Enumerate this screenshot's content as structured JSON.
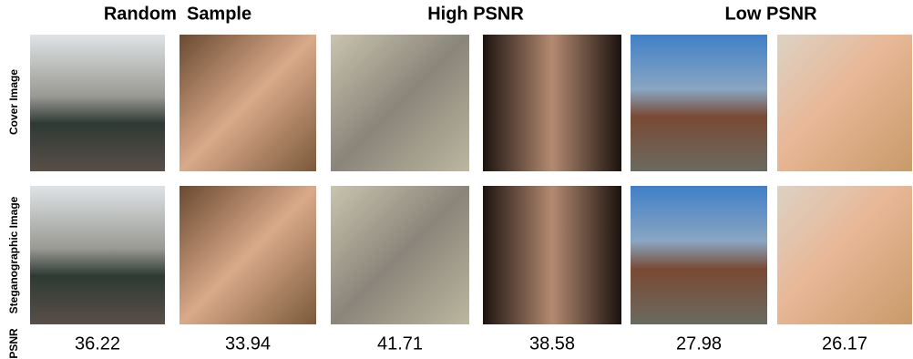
{
  "headers": [
    "Random  Sample",
    "High PSNR",
    "Low PSNR"
  ],
  "row_labels": [
    "Cover Image",
    "Steganographic Image",
    "PSNR"
  ],
  "psnr": [
    36.22,
    33.94,
    41.71,
    38.58,
    27.98,
    26.17
  ]
}
